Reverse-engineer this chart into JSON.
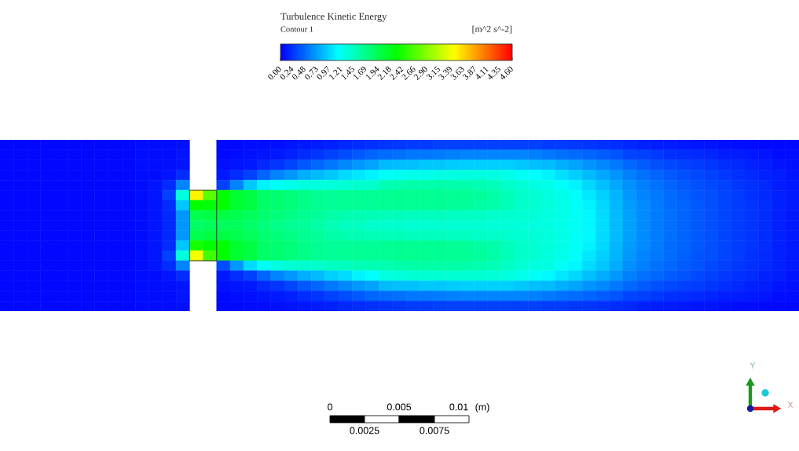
{
  "chart_data": {
    "type": "heatmap",
    "title": "Turbulence Kinetic Energy",
    "subtitle": "Contour 1",
    "clabel": "[m^2 s^-2]",
    "categories": [
      null,
      null,
      null,
      null,
      null,
      null,
      null,
      null,
      null,
      null,
      null,
      null,
      null,
      null,
      null,
      null,
      null,
      null,
      null,
      null,
      null,
      null,
      null,
      null,
      null,
      null,
      null,
      null,
      null,
      null,
      null,
      null,
      null,
      null,
      null,
      null,
      null,
      null,
      null,
      null,
      null,
      null,
      null,
      null,
      null,
      null,
      null,
      null,
      null,
      null,
      null,
      null,
      null,
      null,
      null,
      null,
      null,
      null,
      null
    ],
    "y_categories": [
      null,
      null,
      null,
      null,
      null,
      null,
      null,
      null,
      null,
      null,
      null,
      null,
      null,
      null,
      null,
      null,
      null
    ],
    "cells": [
      [
        0.05,
        0.05,
        0.05,
        0.05,
        0.05,
        0.05,
        0.05,
        0.05,
        0.05,
        0.05,
        0.06,
        0.06,
        0.07,
        0.08,
        null,
        null,
        0.05,
        0.05,
        0.06,
        0.07,
        0.08,
        0.1,
        0.12,
        0.14,
        0.16,
        0.18,
        0.2,
        0.22,
        0.25,
        0.26,
        0.27,
        0.28,
        0.29,
        0.3,
        0.3,
        0.3,
        0.3,
        0.3,
        0.3,
        0.3,
        0.28,
        0.27,
        0.26,
        0.25,
        0.23,
        0.21,
        0.18,
        0.16,
        0.14,
        0.13,
        0.12,
        0.1,
        0.09,
        0.08,
        0.07,
        0.06,
        0.05,
        0.05,
        0.04
      ],
      [
        0.05,
        0.05,
        0.05,
        0.05,
        0.05,
        0.05,
        0.05,
        0.05,
        0.05,
        0.05,
        0.06,
        0.06,
        0.07,
        0.09,
        null,
        null,
        0.05,
        0.06,
        0.08,
        0.1,
        0.12,
        0.15,
        0.2,
        0.25,
        0.3,
        0.35,
        0.4,
        0.45,
        0.5,
        0.52,
        0.54,
        0.55,
        0.56,
        0.58,
        0.6,
        0.6,
        0.6,
        0.6,
        0.6,
        0.58,
        0.55,
        0.52,
        0.5,
        0.46,
        0.42,
        0.38,
        0.32,
        0.29,
        0.26,
        0.23,
        0.21,
        0.18,
        0.17,
        0.14,
        0.13,
        0.11,
        0.09,
        0.07,
        0.06
      ],
      [
        0.05,
        0.05,
        0.05,
        0.05,
        0.05,
        0.05,
        0.05,
        0.05,
        0.05,
        0.05,
        0.06,
        0.06,
        0.08,
        0.1,
        null,
        null,
        0.08,
        0.1,
        0.12,
        0.18,
        0.25,
        0.32,
        0.4,
        0.48,
        0.55,
        0.62,
        0.7,
        0.75,
        0.85,
        0.87,
        0.88,
        0.9,
        0.91,
        0.93,
        0.95,
        0.95,
        0.95,
        0.95,
        0.9,
        0.88,
        0.85,
        0.8,
        0.75,
        0.68,
        0.62,
        0.55,
        0.47,
        0.42,
        0.37,
        0.33,
        0.3,
        0.27,
        0.24,
        0.21,
        0.18,
        0.16,
        0.13,
        0.1,
        0.08
      ],
      [
        0.05,
        0.05,
        0.05,
        0.05,
        0.05,
        0.05,
        0.05,
        0.05,
        0.05,
        0.05,
        0.06,
        0.06,
        0.1,
        0.2,
        null,
        null,
        0.12,
        0.2,
        0.3,
        0.45,
        0.6,
        0.7,
        0.8,
        0.85,
        0.9,
        1.0,
        1.05,
        1.1,
        1.2,
        1.22,
        1.24,
        1.25,
        1.26,
        1.28,
        1.3,
        1.3,
        1.28,
        1.25,
        1.2,
        1.15,
        1.1,
        1.02,
        0.95,
        0.85,
        0.76,
        0.68,
        0.58,
        0.51,
        0.46,
        0.41,
        0.37,
        0.33,
        0.3,
        0.26,
        0.22,
        0.19,
        0.16,
        0.13,
        0.1
      ],
      [
        0.05,
        0.05,
        0.05,
        0.05,
        0.05,
        0.05,
        0.05,
        0.05,
        0.05,
        0.05,
        0.06,
        0.1,
        0.2,
        0.6,
        null,
        null,
        0.3,
        0.6,
        0.9,
        1.1,
        1.2,
        1.25,
        1.3,
        1.3,
        1.32,
        1.35,
        1.38,
        1.4,
        1.5,
        1.52,
        1.53,
        1.54,
        1.54,
        1.53,
        1.52,
        1.5,
        1.46,
        1.4,
        1.33,
        1.28,
        1.25,
        1.18,
        1.1,
        0.98,
        0.88,
        0.77,
        0.65,
        0.58,
        0.51,
        0.46,
        0.41,
        0.37,
        0.33,
        0.29,
        0.25,
        0.22,
        0.18,
        0.14,
        0.11
      ],
      [
        0.05,
        0.05,
        0.05,
        0.05,
        0.05,
        0.05,
        0.05,
        0.05,
        0.05,
        0.05,
        0.06,
        0.1,
        0.3,
        1.3,
        3.5,
        2.7,
        2.3,
        2.1,
        2.0,
        1.85,
        1.8,
        1.75,
        1.7,
        1.65,
        1.62,
        1.62,
        1.63,
        1.64,
        1.65,
        1.66,
        1.66,
        1.66,
        1.65,
        1.64,
        1.62,
        1.6,
        1.55,
        1.48,
        1.4,
        1.35,
        1.3,
        1.25,
        1.18,
        1.06,
        0.95,
        0.82,
        0.69,
        0.61,
        0.55,
        0.49,
        0.44,
        0.39,
        0.36,
        0.31,
        0.27,
        0.23,
        0.19,
        0.15,
        0.12
      ],
      [
        0.05,
        0.05,
        0.05,
        0.05,
        0.05,
        0.05,
        0.05,
        0.05,
        0.05,
        0.05,
        0.06,
        0.1,
        0.2,
        0.9,
        2.3,
        2.25,
        2.3,
        2.1,
        2.0,
        1.85,
        1.8,
        1.75,
        1.7,
        1.65,
        1.62,
        1.62,
        1.62,
        1.63,
        1.64,
        1.65,
        1.65,
        1.65,
        1.64,
        1.63,
        1.61,
        1.58,
        1.54,
        1.47,
        1.4,
        1.36,
        1.32,
        1.26,
        1.2,
        1.1,
        0.98,
        0.84,
        0.71,
        0.63,
        0.56,
        0.5,
        0.45,
        0.4,
        0.37,
        0.32,
        0.28,
        0.24,
        0.2,
        0.16,
        0.12
      ],
      [
        0.05,
        0.05,
        0.05,
        0.05,
        0.05,
        0.05,
        0.05,
        0.05,
        0.05,
        0.05,
        0.06,
        0.1,
        0.18,
        0.7,
        1.95,
        2.0,
        2.0,
        1.95,
        1.9,
        1.8,
        1.75,
        1.7,
        1.65,
        1.6,
        1.55,
        1.52,
        1.5,
        1.48,
        1.47,
        1.46,
        1.45,
        1.45,
        1.44,
        1.43,
        1.42,
        1.41,
        1.4,
        1.38,
        1.35,
        1.33,
        1.3,
        1.26,
        1.2,
        1.12,
        1.0,
        0.85,
        0.72,
        0.64,
        0.57,
        0.51,
        0.46,
        0.41,
        0.37,
        0.32,
        0.28,
        0.24,
        0.2,
        0.16,
        0.12
      ],
      [
        0.05,
        0.05,
        0.05,
        0.05,
        0.05,
        0.05,
        0.05,
        0.05,
        0.05,
        0.05,
        0.06,
        0.1,
        0.18,
        0.7,
        1.85,
        1.9,
        1.9,
        1.9,
        1.85,
        1.75,
        1.7,
        1.65,
        1.6,
        1.55,
        1.5,
        1.45,
        1.42,
        1.4,
        1.38,
        1.37,
        1.36,
        1.36,
        1.36,
        1.36,
        1.35,
        1.35,
        1.34,
        1.33,
        1.32,
        1.3,
        1.28,
        1.25,
        1.2,
        1.12,
        1.0,
        0.85,
        0.72,
        0.64,
        0.57,
        0.51,
        0.46,
        0.41,
        0.37,
        0.32,
        0.28,
        0.24,
        0.2,
        0.16,
        0.12
      ],
      [
        0.05,
        0.05,
        0.05,
        0.05,
        0.05,
        0.05,
        0.05,
        0.05,
        0.05,
        0.05,
        0.06,
        0.1,
        0.18,
        0.7,
        1.95,
        2.0,
        2.0,
        1.95,
        1.9,
        1.8,
        1.75,
        1.7,
        1.65,
        1.6,
        1.55,
        1.52,
        1.5,
        1.48,
        1.47,
        1.46,
        1.45,
        1.45,
        1.44,
        1.43,
        1.42,
        1.41,
        1.4,
        1.38,
        1.35,
        1.33,
        1.3,
        1.26,
        1.2,
        1.12,
        1.0,
        0.85,
        0.72,
        0.64,
        0.57,
        0.51,
        0.46,
        0.41,
        0.37,
        0.32,
        0.28,
        0.24,
        0.2,
        0.16,
        0.12
      ],
      [
        0.05,
        0.05,
        0.05,
        0.05,
        0.05,
        0.05,
        0.05,
        0.05,
        0.05,
        0.05,
        0.06,
        0.1,
        0.2,
        0.9,
        2.4,
        2.3,
        2.3,
        2.1,
        2.0,
        1.85,
        1.8,
        1.75,
        1.7,
        1.65,
        1.62,
        1.62,
        1.62,
        1.63,
        1.64,
        1.65,
        1.65,
        1.65,
        1.64,
        1.63,
        1.61,
        1.58,
        1.54,
        1.47,
        1.4,
        1.36,
        1.32,
        1.26,
        1.2,
        1.1,
        0.98,
        0.84,
        0.71,
        0.63,
        0.56,
        0.5,
        0.45,
        0.4,
        0.37,
        0.32,
        0.28,
        0.24,
        0.2,
        0.16,
        0.12
      ],
      [
        0.05,
        0.05,
        0.05,
        0.05,
        0.05,
        0.05,
        0.05,
        0.05,
        0.05,
        0.05,
        0.06,
        0.1,
        0.3,
        1.3,
        3.4,
        2.6,
        2.3,
        2.1,
        2.0,
        1.85,
        1.8,
        1.75,
        1.7,
        1.65,
        1.62,
        1.62,
        1.63,
        1.64,
        1.65,
        1.66,
        1.66,
        1.66,
        1.65,
        1.64,
        1.62,
        1.6,
        1.55,
        1.48,
        1.4,
        1.35,
        1.3,
        1.25,
        1.18,
        1.06,
        0.95,
        0.82,
        0.69,
        0.61,
        0.55,
        0.49,
        0.44,
        0.39,
        0.36,
        0.31,
        0.27,
        0.23,
        0.19,
        0.15,
        0.12
      ],
      [
        0.05,
        0.05,
        0.05,
        0.05,
        0.05,
        0.05,
        0.05,
        0.05,
        0.05,
        0.05,
        0.06,
        0.1,
        0.2,
        0.6,
        null,
        null,
        0.35,
        0.7,
        1.0,
        1.2,
        1.3,
        1.35,
        1.38,
        1.4,
        1.42,
        1.45,
        1.48,
        1.5,
        1.52,
        1.54,
        1.55,
        1.56,
        1.56,
        1.55,
        1.54,
        1.52,
        1.48,
        1.42,
        1.36,
        1.3,
        1.28,
        1.2,
        1.12,
        1.0,
        0.9,
        0.78,
        0.66,
        0.59,
        0.52,
        0.47,
        0.42,
        0.38,
        0.34,
        0.29,
        0.26,
        0.22,
        0.18,
        0.15,
        0.11
      ],
      [
        0.05,
        0.05,
        0.05,
        0.05,
        0.05,
        0.05,
        0.05,
        0.05,
        0.05,
        0.05,
        0.06,
        0.06,
        0.1,
        0.2,
        null,
        null,
        0.12,
        0.2,
        0.3,
        0.45,
        0.6,
        0.7,
        0.8,
        0.85,
        0.95,
        1.0,
        1.1,
        1.15,
        1.3,
        1.32,
        1.34,
        1.35,
        1.36,
        1.36,
        1.36,
        1.35,
        1.33,
        1.3,
        1.25,
        1.2,
        1.12,
        1.05,
        0.98,
        0.88,
        0.78,
        0.7,
        0.59,
        0.52,
        0.47,
        0.42,
        0.38,
        0.34,
        0.3,
        0.26,
        0.23,
        0.2,
        0.16,
        0.13,
        0.1
      ],
      [
        0.05,
        0.05,
        0.05,
        0.05,
        0.05,
        0.05,
        0.05,
        0.05,
        0.05,
        0.05,
        0.06,
        0.06,
        0.08,
        0.1,
        null,
        null,
        0.08,
        0.1,
        0.12,
        0.18,
        0.25,
        0.32,
        0.4,
        0.48,
        0.55,
        0.62,
        0.7,
        0.75,
        0.85,
        0.87,
        0.88,
        0.9,
        0.91,
        0.93,
        0.95,
        0.95,
        0.95,
        0.95,
        0.9,
        0.88,
        0.85,
        0.8,
        0.75,
        0.68,
        0.62,
        0.55,
        0.47,
        0.42,
        0.37,
        0.33,
        0.3,
        0.27,
        0.24,
        0.21,
        0.18,
        0.16,
        0.13,
        0.1,
        0.08
      ],
      [
        0.05,
        0.05,
        0.05,
        0.05,
        0.05,
        0.05,
        0.05,
        0.05,
        0.05,
        0.05,
        0.06,
        0.06,
        0.07,
        0.09,
        null,
        null,
        0.05,
        0.06,
        0.08,
        0.1,
        0.12,
        0.15,
        0.2,
        0.25,
        0.3,
        0.35,
        0.4,
        0.45,
        0.5,
        0.52,
        0.54,
        0.55,
        0.56,
        0.58,
        0.6,
        0.6,
        0.6,
        0.6,
        0.6,
        0.58,
        0.55,
        0.52,
        0.5,
        0.46,
        0.42,
        0.38,
        0.32,
        0.29,
        0.26,
        0.23,
        0.21,
        0.18,
        0.17,
        0.14,
        0.13,
        0.11,
        0.09,
        0.07,
        0.06
      ],
      [
        0.05,
        0.05,
        0.05,
        0.05,
        0.05,
        0.05,
        0.05,
        0.05,
        0.05,
        0.05,
        0.06,
        0.06,
        0.07,
        0.08,
        null,
        null,
        0.05,
        0.05,
        0.06,
        0.07,
        0.08,
        0.1,
        0.12,
        0.14,
        0.16,
        0.18,
        0.2,
        0.22,
        0.25,
        0.26,
        0.27,
        0.28,
        0.29,
        0.3,
        0.3,
        0.3,
        0.3,
        0.3,
        0.3,
        0.3,
        0.28,
        0.27,
        0.26,
        0.25,
        0.23,
        0.21,
        0.18,
        0.16,
        0.14,
        0.13,
        0.12,
        0.1,
        0.09,
        0.08,
        0.07,
        0.06,
        0.05,
        0.05,
        0.04
      ]
    ],
    "clim": [
      0,
      4.6
    ],
    "cticks": [
      {
        "value": 0,
        "label": "0.00"
      },
      {
        "value": 0.24,
        "label": "0.24"
      },
      {
        "value": 0.48,
        "label": "0.48"
      },
      {
        "value": 0.73,
        "label": "0.73"
      },
      {
        "value": 0.97,
        "label": "0.97"
      },
      {
        "value": 1.21,
        "label": "1.21"
      },
      {
        "value": 1.45,
        "label": "1.45"
      },
      {
        "value": 1.69,
        "label": "1.69"
      },
      {
        "value": 1.94,
        "label": "1.94"
      },
      {
        "value": 2.18,
        "label": "2.18"
      },
      {
        "value": 2.42,
        "label": "2.42"
      },
      {
        "value": 2.66,
        "label": "2.66"
      },
      {
        "value": 2.9,
        "label": "2.90"
      },
      {
        "value": 3.15,
        "label": "3.15"
      },
      {
        "value": 3.39,
        "label": "3.39"
      },
      {
        "value": 3.63,
        "label": "3.63"
      },
      {
        "value": 3.87,
        "label": "3.87"
      },
      {
        "value": 4.11,
        "label": "4.11"
      },
      {
        "value": 4.35,
        "label": "4.35"
      },
      {
        "value": 4.6,
        "label": "4.60"
      }
    ],
    "tick_labels": false,
    "annotations": [
      "0",
      "0.005",
      "0.01",
      "(m)",
      "0.0025",
      "0.0075",
      "Y",
      "X"
    ]
  }
}
